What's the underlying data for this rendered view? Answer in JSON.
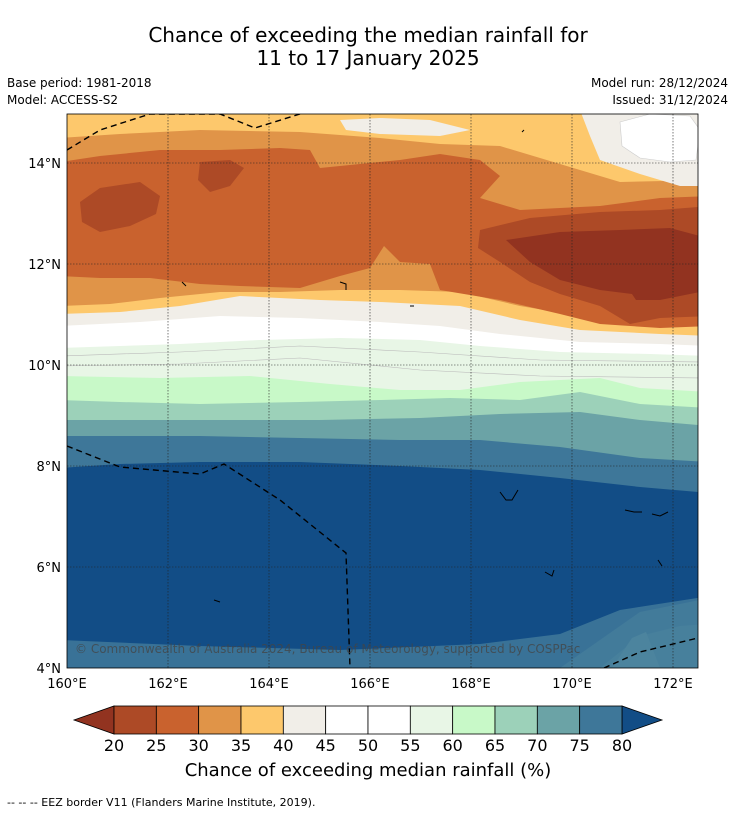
{
  "title_line1": "Chance of exceeding the median rainfall for",
  "title_line2": "11 to 17 January 2025",
  "base_period": "Base period: 1981-2018",
  "model": "Model: ACCESS-S2",
  "model_run": "Model run: 28/12/2024",
  "issued": "Issued: 31/12/2024",
  "copyright": "© Commonwealth of Australia 2024, Bureau of Meteorology, supported by COSPPac",
  "x_ticks": [
    "160°E",
    "162°E",
    "164°E",
    "166°E",
    "168°E",
    "170°E",
    "172°E"
  ],
  "y_ticks": [
    "14°N",
    "12°N",
    "10°N",
    "8°N",
    "6°N",
    "4°N"
  ],
  "colorbar": {
    "title": "Chance of exceeding median rainfall (%)",
    "levels": [
      "20",
      "25",
      "30",
      "35",
      "40",
      "45",
      "50",
      "55",
      "60",
      "65",
      "70",
      "75",
      "80"
    ],
    "colors": [
      "#ad4a26",
      "#c9622e",
      "#e09448",
      "#fdc86c",
      "#f1eee8",
      "#ffffff",
      "#ffffff",
      "#e8f6e6",
      "#c8f9c8",
      "#9cd1b9",
      "#6ba3a6",
      "#3e7799"
    ],
    "under_color": "#923320",
    "over_color": "#124d86"
  },
  "footnote": "--  --  -- EEZ border V11 (Flanders Marine Institute, 2019)."
}
